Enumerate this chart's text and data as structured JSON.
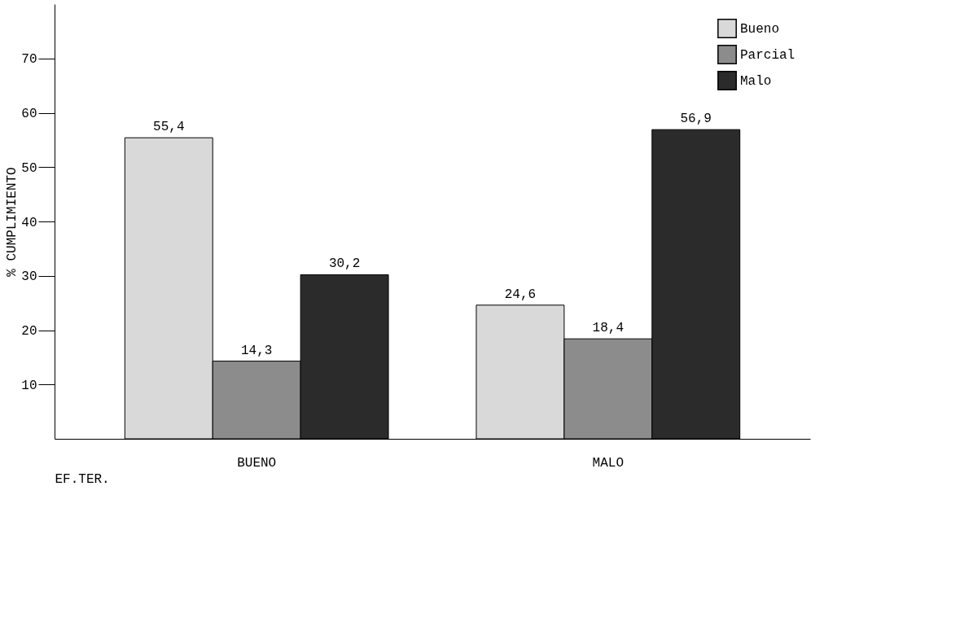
{
  "chart_data": {
    "type": "bar",
    "ylabel": "% CUMPLIMIENTO",
    "xlabel": "EF.TER.",
    "categories": [
      "BUENO",
      "MALO"
    ],
    "series": [
      {
        "name": "Bueno",
        "color": "#d9d9d9",
        "values": [
          55.4,
          24.6
        ],
        "value_labels": [
          "55,4",
          "24,6"
        ]
      },
      {
        "name": "Parcial",
        "color": "#8c8c8c",
        "values": [
          14.3,
          18.4
        ],
        "value_labels": [
          "14,3",
          "18,4"
        ]
      },
      {
        "name": "Malo",
        "color": "#2b2b2b",
        "values": [
          30.2,
          56.9
        ],
        "value_labels": [
          "30,2",
          "56,9"
        ]
      }
    ],
    "ylim": [
      0,
      80
    ],
    "yticks": [
      10,
      20,
      30,
      40,
      50,
      60,
      70
    ],
    "grid": false,
    "legend": "top right"
  }
}
